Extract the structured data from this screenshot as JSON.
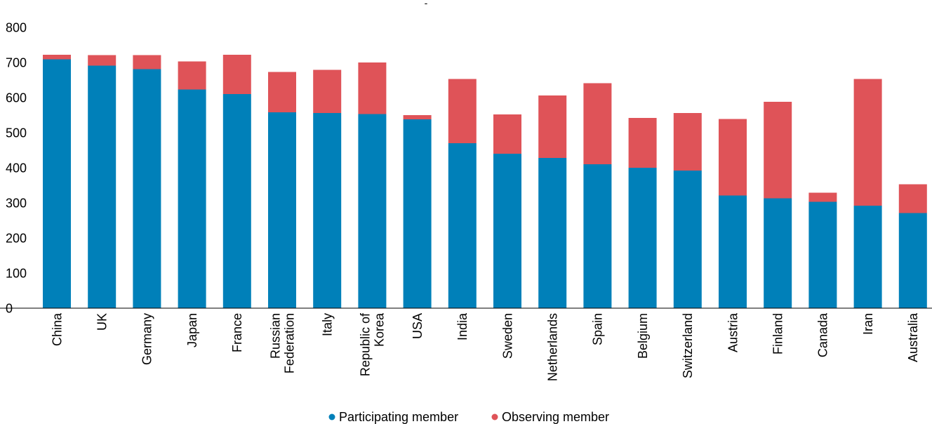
{
  "chart_data": {
    "type": "bar",
    "stacked": true,
    "title": "-",
    "categories": [
      [
        "China"
      ],
      [
        "UK"
      ],
      [
        "Germany"
      ],
      [
        "Japan"
      ],
      [
        "France"
      ],
      [
        "Russian",
        "Federation"
      ],
      [
        "Italy"
      ],
      [
        "Republic of",
        "Korea"
      ],
      [
        "USA"
      ],
      [
        "India"
      ],
      [
        "Sweden"
      ],
      [
        "Netherlands"
      ],
      [
        "Spain"
      ],
      [
        "Belgium"
      ],
      [
        "Switzerland"
      ],
      [
        "Austria"
      ],
      [
        "Finland"
      ],
      [
        "Canada"
      ],
      [
        "Iran"
      ],
      [
        "Australia"
      ]
    ],
    "series": [
      {
        "name": "Participating member",
        "color": "#0080b9",
        "values": [
          709,
          691,
          681,
          623,
          610,
          558,
          556,
          553,
          538,
          470,
          440,
          428,
          410,
          400,
          392,
          321,
          313,
          303,
          292,
          271
        ]
      },
      {
        "name": "Observing member",
        "color": "#df5358",
        "values": [
          13,
          30,
          40,
          80,
          112,
          115,
          123,
          147,
          12,
          183,
          112,
          178,
          231,
          142,
          164,
          218,
          275,
          26,
          361,
          82
        ]
      }
    ],
    "ylim": [
      0,
      800
    ],
    "yticks": [
      0,
      100,
      200,
      300,
      400,
      500,
      600,
      700,
      800
    ],
    "grid": false,
    "legend_position": "bottom-center"
  }
}
